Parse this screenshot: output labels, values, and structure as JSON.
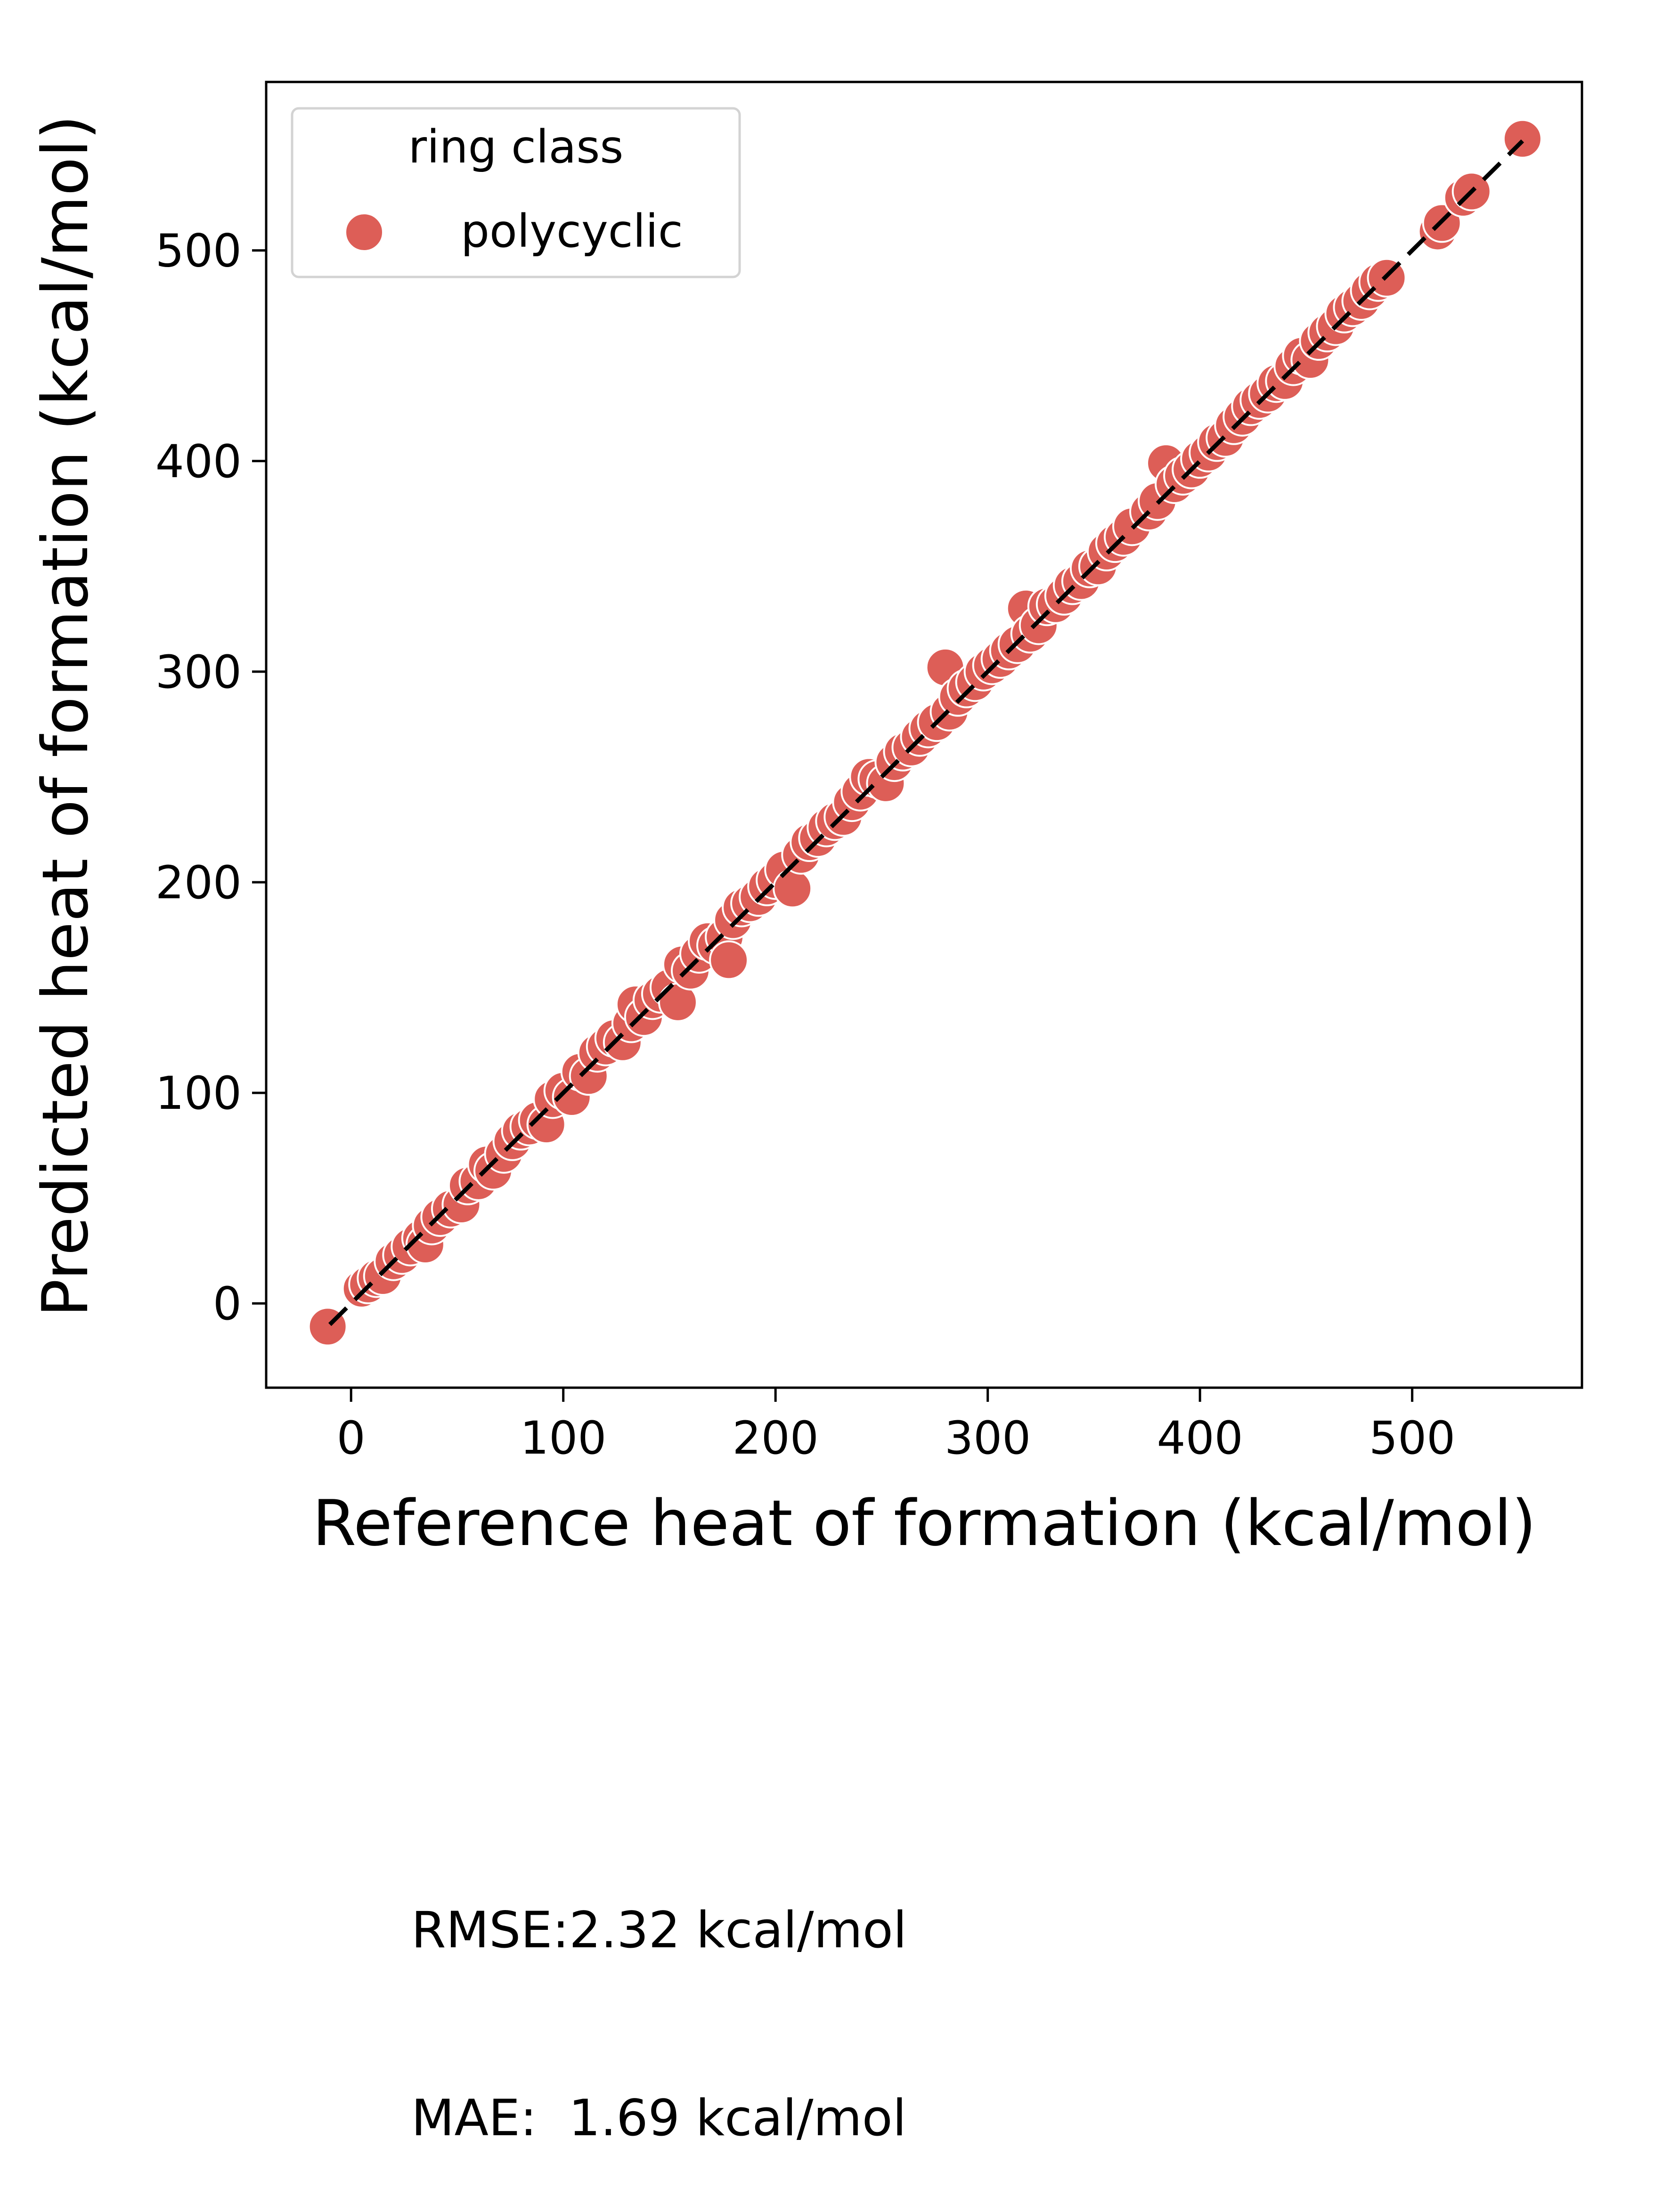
{
  "chart_data": {
    "type": "scatter",
    "title": "",
    "xlabel": "Reference heat of formation (kcal/mol)",
    "ylabel": "Predicted heat of formation (kcal/mol)",
    "xlim": [
      -40,
      580
    ],
    "ylim": [
      -40,
      580
    ],
    "xticks": [
      0,
      100,
      200,
      300,
      400,
      500
    ],
    "yticks": [
      0,
      100,
      200,
      300,
      400,
      500
    ],
    "xtick_labels": [
      "0",
      "100",
      "200",
      "300",
      "400",
      "500"
    ],
    "ytick_labels": [
      "0",
      "100",
      "200",
      "300",
      "400",
      "500"
    ],
    "grid": false,
    "legend": {
      "title": "ring class",
      "placement": "top-left",
      "entries": [
        "polycyclic"
      ]
    },
    "reference_line": {
      "style": "dashed",
      "color": "#000000",
      "from": [
        -10,
        -10
      ],
      "to": [
        552,
        552
      ]
    },
    "series": [
      {
        "name": "polycyclic",
        "color": "#dd5e57",
        "points": [
          [
            -11,
            -11
          ],
          [
            5,
            7
          ],
          [
            8,
            9
          ],
          [
            12,
            12
          ],
          [
            15,
            13
          ],
          [
            20,
            20
          ],
          [
            24,
            23
          ],
          [
            28,
            27
          ],
          [
            33,
            31
          ],
          [
            35,
            28
          ],
          [
            38,
            37
          ],
          [
            42,
            41
          ],
          [
            47,
            45
          ],
          [
            52,
            47
          ],
          [
            55,
            56
          ],
          [
            60,
            58
          ],
          [
            64,
            66
          ],
          [
            67,
            63
          ],
          [
            72,
            71
          ],
          [
            76,
            77
          ],
          [
            80,
            82
          ],
          [
            84,
            84
          ],
          [
            88,
            87
          ],
          [
            92,
            85
          ],
          [
            95,
            97
          ],
          [
            100,
            101
          ],
          [
            104,
            98
          ],
          [
            108,
            110
          ],
          [
            112,
            108
          ],
          [
            116,
            119
          ],
          [
            120,
            122
          ],
          [
            124,
            126
          ],
          [
            128,
            124
          ],
          [
            132,
            133
          ],
          [
            134,
            142
          ],
          [
            138,
            136
          ],
          [
            142,
            144
          ],
          [
            146,
            147
          ],
          [
            150,
            150
          ],
          [
            154,
            143
          ],
          [
            156,
            161
          ],
          [
            160,
            158
          ],
          [
            164,
            166
          ],
          [
            168,
            172
          ],
          [
            172,
            170
          ],
          [
            176,
            174
          ],
          [
            178,
            163
          ],
          [
            180,
            182
          ],
          [
            184,
            188
          ],
          [
            188,
            190
          ],
          [
            192,
            193
          ],
          [
            196,
            198
          ],
          [
            200,
            201
          ],
          [
            204,
            206
          ],
          [
            208,
            197
          ],
          [
            212,
            213
          ],
          [
            216,
            219
          ],
          [
            220,
            221
          ],
          [
            224,
            226
          ],
          [
            228,
            229
          ],
          [
            232,
            231
          ],
          [
            236,
            238
          ],
          [
            240,
            243
          ],
          [
            244,
            250
          ],
          [
            248,
            249
          ],
          [
            252,
            247
          ],
          [
            256,
            257
          ],
          [
            260,
            262
          ],
          [
            264,
            264
          ],
          [
            268,
            269
          ],
          [
            272,
            273
          ],
          [
            276,
            276
          ],
          [
            280,
            302
          ],
          [
            282,
            281
          ],
          [
            286,
            288
          ],
          [
            290,
            292
          ],
          [
            294,
            295
          ],
          [
            298,
            300
          ],
          [
            302,
            303
          ],
          [
            306,
            306
          ],
          [
            310,
            310
          ],
          [
            314,
            313
          ],
          [
            318,
            330
          ],
          [
            320,
            318
          ],
          [
            324,
            322
          ],
          [
            328,
            331
          ],
          [
            332,
            332
          ],
          [
            336,
            336
          ],
          [
            340,
            341
          ],
          [
            344,
            343
          ],
          [
            348,
            349
          ],
          [
            352,
            350
          ],
          [
            356,
            357
          ],
          [
            360,
            361
          ],
          [
            364,
            364
          ],
          [
            368,
            369
          ],
          [
            376,
            376
          ],
          [
            380,
            381
          ],
          [
            384,
            399
          ],
          [
            388,
            389
          ],
          [
            392,
            393
          ],
          [
            396,
            396
          ],
          [
            400,
            401
          ],
          [
            404,
            404
          ],
          [
            408,
            409
          ],
          [
            412,
            411
          ],
          [
            416,
            417
          ],
          [
            420,
            421
          ],
          [
            424,
            426
          ],
          [
            428,
            429
          ],
          [
            432,
            432
          ],
          [
            436,
            437
          ],
          [
            440,
            438
          ],
          [
            444,
            445
          ],
          [
            448,
            450
          ],
          [
            452,
            448
          ],
          [
            456,
            457
          ],
          [
            460,
            461
          ],
          [
            464,
            464
          ],
          [
            468,
            470
          ],
          [
            472,
            473
          ],
          [
            476,
            476
          ],
          [
            480,
            481
          ],
          [
            484,
            485
          ],
          [
            488,
            487
          ],
          [
            512,
            509
          ],
          [
            514,
            513
          ],
          [
            524,
            525
          ],
          [
            528,
            528
          ],
          [
            552,
            553
          ]
        ]
      }
    ]
  },
  "stats": {
    "rmse": "RMSE:2.32 kcal/mol",
    "mae": "MAE:  1.69 kcal/mol"
  }
}
